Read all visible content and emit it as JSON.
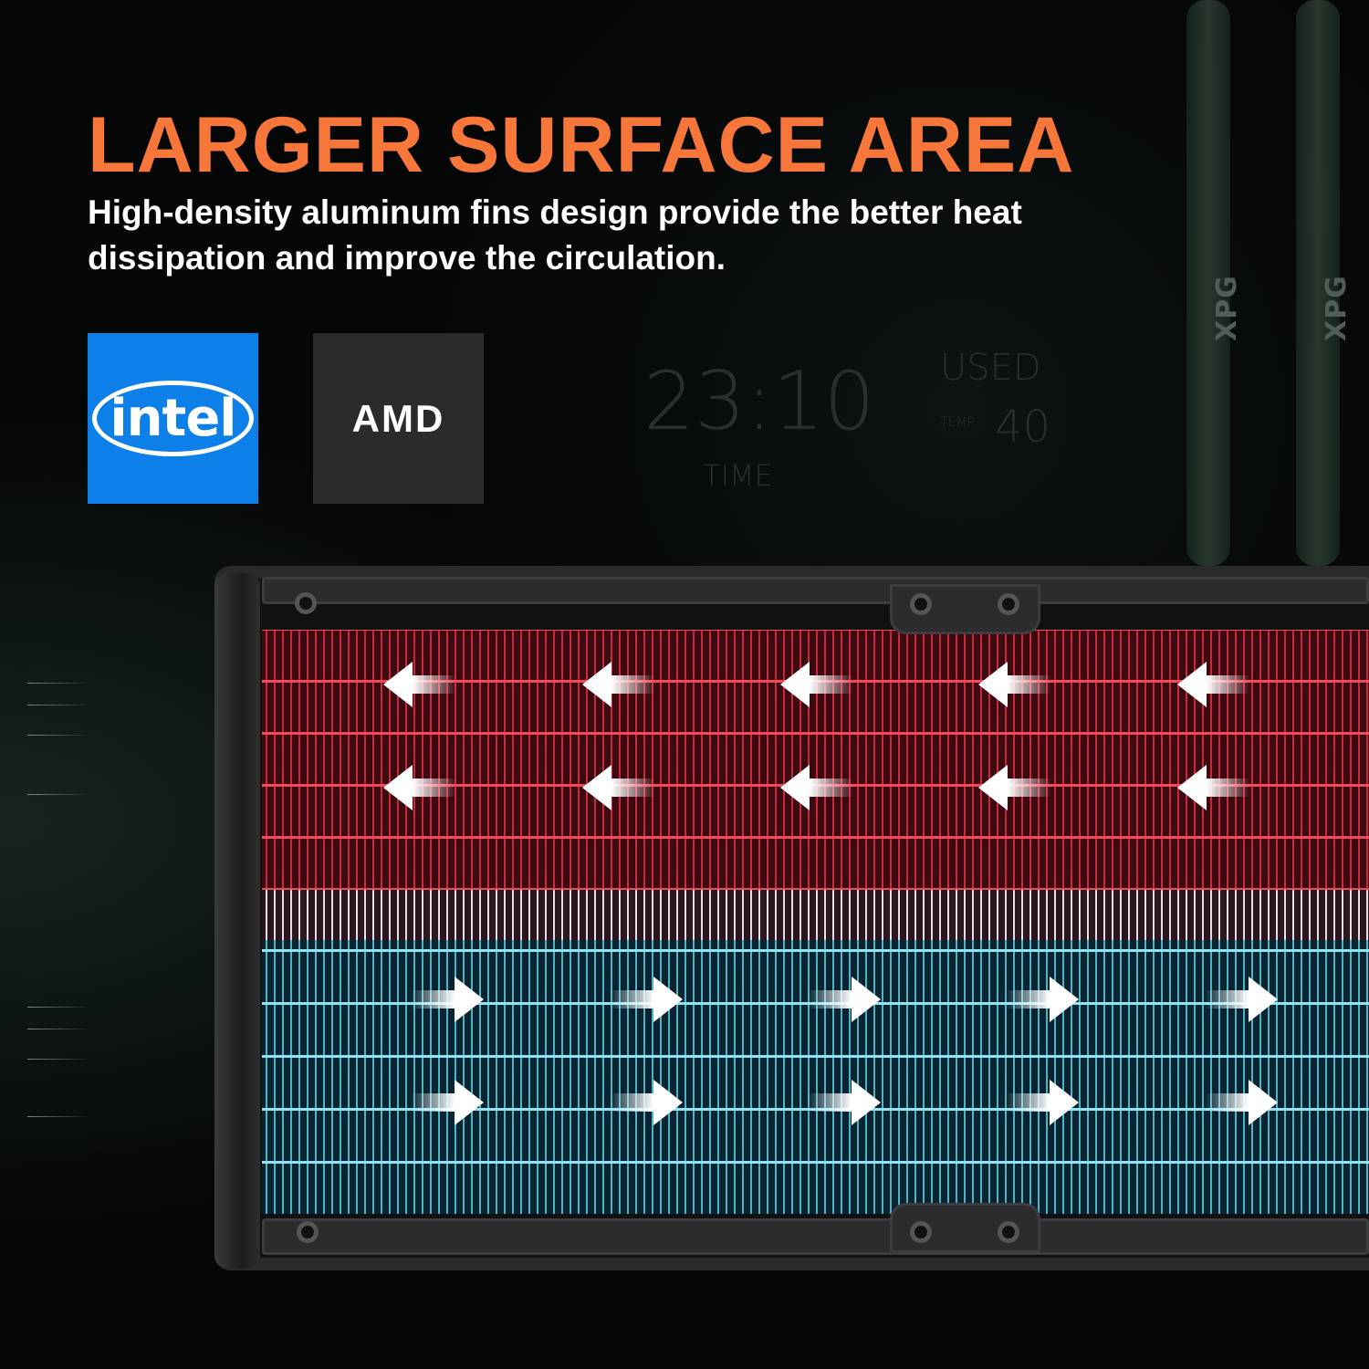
{
  "headline": "LARGER SURFACE AREA",
  "subtitle": "High-density aluminum fins design provide the better heat dissipation and improve the circulation.",
  "logos": {
    "intel": "intel",
    "amd": "AMD"
  },
  "background_display": {
    "used": "USED",
    "temp_label": "TEMP",
    "temp_value": "40",
    "time": "23:10",
    "time_label": "TIME"
  },
  "tube_brand": "XPG",
  "colors": {
    "headline": "#f7773a",
    "intel_blue": "#0d7fe8",
    "hot": "#c8283a",
    "cold": "#4fb2c8"
  },
  "flow": {
    "hot_direction": "left",
    "cold_direction": "right"
  }
}
